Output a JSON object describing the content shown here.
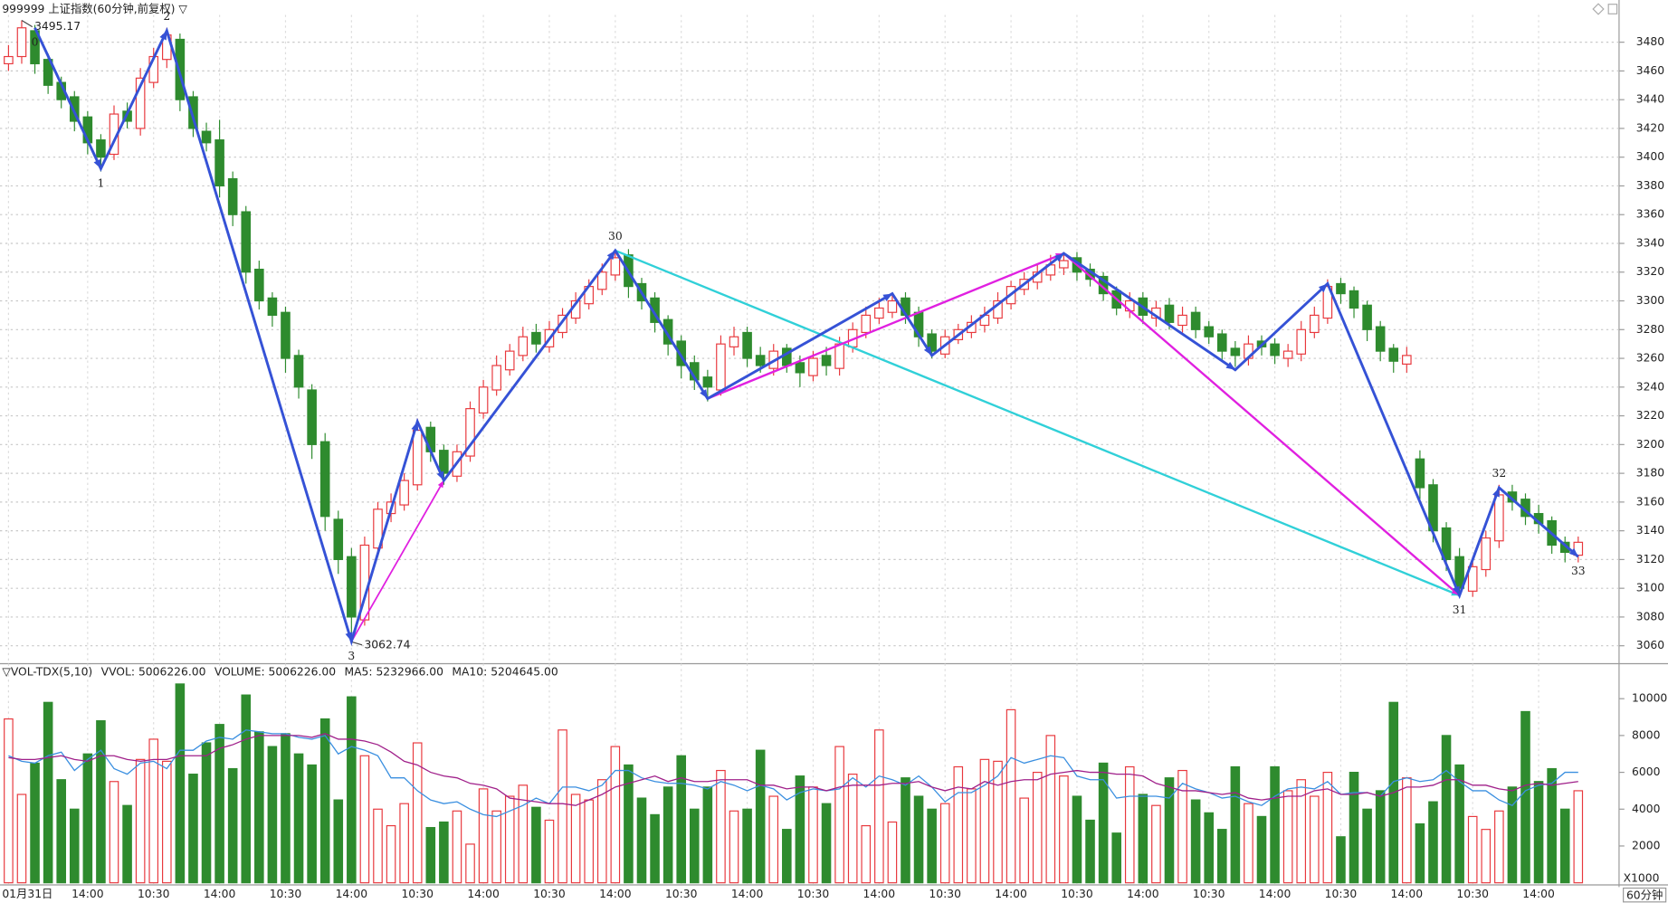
{
  "chart_data": [
    {
      "type": "candlestick",
      "title": "999999 上证指数(60分钟,前复权) ▽",
      "categories": [
        "01月31日",
        null,
        null,
        null,
        null,
        null,
        "14:00",
        null,
        null,
        null,
        null,
        "10:30",
        null,
        null,
        null,
        null,
        "14:00",
        null,
        null,
        null,
        null,
        "10:30",
        null,
        null,
        null,
        null,
        "14:00",
        null,
        null,
        null,
        null,
        "10:30",
        null,
        null,
        null,
        null,
        "14:00",
        null,
        null,
        null,
        null,
        "10:30",
        null,
        null,
        null,
        null,
        "14:00",
        null,
        null,
        null,
        null,
        "10:30",
        null,
        null,
        null,
        null,
        "14:00",
        null,
        null,
        null,
        null,
        "10:30",
        null,
        null,
        null,
        null,
        "14:00",
        null,
        null,
        null,
        null,
        "10:30",
        null,
        null,
        null,
        null,
        "14:00",
        null,
        null,
        null,
        null,
        "10:30",
        null,
        null,
        null,
        null,
        "14:00",
        null,
        null,
        null,
        null,
        "10:30",
        null,
        null,
        null,
        null,
        "14:00",
        null,
        null,
        null,
        null,
        "10:30",
        null,
        null,
        null,
        null,
        "14:00",
        null,
        null,
        null,
        null,
        "10:30",
        null,
        null,
        null,
        null,
        "14:00",
        null,
        null,
        null
      ],
      "open": [
        3465,
        3470,
        3488,
        3468,
        3452,
        3442,
        3428,
        3412,
        3402,
        3432,
        3420,
        3452,
        3468,
        3482,
        3442,
        3418,
        3412,
        3385,
        3362,
        3322,
        3302,
        3292,
        3262,
        3238,
        3202,
        3148,
        3122,
        3078,
        3128,
        3152,
        3158,
        3172,
        3212,
        3196,
        3178,
        3192,
        3222,
        3238,
        3252,
        3262,
        3278,
        3268,
        3278,
        3288,
        3298,
        3308,
        3318,
        3332,
        3312,
        3302,
        3287,
        3272,
        3257,
        3247,
        3238,
        3268,
        3278,
        3262,
        3253,
        3267,
        3257,
        3248,
        3262,
        3253,
        3268,
        3278,
        3288,
        3292,
        3302,
        3292,
        3277,
        3263,
        3273,
        3278,
        3283,
        3288,
        3298,
        3308,
        3313,
        3318,
        3323,
        3330,
        3322,
        3317,
        3307,
        3293,
        3302,
        3288,
        3297,
        3283,
        3292,
        3282,
        3277,
        3267,
        3260,
        3272,
        3270,
        3260,
        3263,
        3278,
        3288,
        3312,
        3307,
        3297,
        3282,
        3267,
        3256,
        3190,
        3172,
        3142,
        3122,
        3098,
        3113,
        3133,
        3167,
        3162,
        3152,
        3147,
        3132,
        3123
      ],
      "high": [
        3478,
        3495.17,
        3492,
        3472,
        3456,
        3446,
        3432,
        3416,
        3436,
        3438,
        3462,
        3476,
        3490,
        3486,
        3446,
        3424,
        3426,
        3390,
        3366,
        3328,
        3306,
        3296,
        3266,
        3242,
        3208,
        3154,
        3128,
        3136,
        3160,
        3166,
        3180,
        3218,
        3216,
        3200,
        3200,
        3230,
        3245,
        3262,
        3270,
        3282,
        3284,
        3286,
        3295,
        3306,
        3315,
        3326,
        3336,
        3336,
        3316,
        3306,
        3290,
        3276,
        3262,
        3252,
        3276,
        3282,
        3282,
        3268,
        3270,
        3270,
        3262,
        3265,
        3268,
        3275,
        3285,
        3296,
        3302,
        3306,
        3306,
        3296,
        3280,
        3280,
        3284,
        3290,
        3296,
        3306,
        3314,
        3320,
        3326,
        3332,
        3334,
        3334,
        3326,
        3320,
        3310,
        3306,
        3306,
        3300,
        3302,
        3296,
        3296,
        3286,
        3280,
        3272,
        3276,
        3276,
        3274,
        3270,
        3286,
        3296,
        3315,
        3316,
        3310,
        3300,
        3286,
        3270,
        3268,
        3196,
        3176,
        3146,
        3128,
        3122,
        3140,
        3172,
        3172,
        3166,
        3158,
        3150,
        3136,
        3136
      ],
      "low": [
        3460,
        3465,
        3458,
        3444,
        3434,
        3418,
        3402,
        3390,
        3398,
        3420,
        3415,
        3448,
        3462,
        3432,
        3414,
        3404,
        3372,
        3352,
        3312,
        3294,
        3282,
        3250,
        3232,
        3190,
        3140,
        3110,
        3062.74,
        3074,
        3122,
        3146,
        3154,
        3168,
        3188,
        3172,
        3174,
        3188,
        3218,
        3234,
        3248,
        3258,
        3264,
        3264,
        3274,
        3284,
        3294,
        3304,
        3314,
        3302,
        3294,
        3278,
        3262,
        3246,
        3238,
        3230,
        3234,
        3262,
        3254,
        3250,
        3248,
        3250,
        3240,
        3244,
        3248,
        3248,
        3264,
        3274,
        3284,
        3288,
        3284,
        3268,
        3260,
        3260,
        3270,
        3274,
        3278,
        3284,
        3294,
        3304,
        3308,
        3314,
        3318,
        3314,
        3310,
        3300,
        3290,
        3288,
        3284,
        3282,
        3280,
        3278,
        3274,
        3270,
        3258,
        3254,
        3255,
        3262,
        3256,
        3254,
        3258,
        3274,
        3284,
        3298,
        3288,
        3272,
        3258,
        3250,
        3250,
        3162,
        3132,
        3112,
        3095,
        3094,
        3108,
        3128,
        3154,
        3144,
        3138,
        3124,
        3118,
        3118
      ],
      "close": [
        3470,
        3490,
        3465,
        3450,
        3440,
        3425,
        3410,
        3400,
        3430,
        3425,
        3455,
        3470,
        3485,
        3440,
        3420,
        3410,
        3380,
        3360,
        3320,
        3300,
        3290,
        3260,
        3240,
        3200,
        3150,
        3120,
        3080,
        3130,
        3155,
        3160,
        3175,
        3210,
        3195,
        3180,
        3195,
        3225,
        3240,
        3255,
        3265,
        3275,
        3270,
        3280,
        3290,
        3300,
        3310,
        3320,
        3330,
        3310,
        3300,
        3285,
        3270,
        3255,
        3245,
        3240,
        3270,
        3275,
        3260,
        3255,
        3265,
        3255,
        3250,
        3260,
        3255,
        3270,
        3280,
        3290,
        3295,
        3300,
        3290,
        3275,
        3265,
        3275,
        3280,
        3285,
        3290,
        3300,
        3310,
        3315,
        3320,
        3325,
        3328,
        3320,
        3315,
        3305,
        3295,
        3300,
        3290,
        3295,
        3285,
        3290,
        3280,
        3275,
        3265,
        3262,
        3270,
        3268,
        3262,
        3265,
        3280,
        3290,
        3310,
        3305,
        3295,
        3280,
        3265,
        3258,
        3262,
        3170,
        3140,
        3120,
        3100,
        3115,
        3135,
        3165,
        3160,
        3150,
        3145,
        3130,
        3125,
        3132
      ],
      "up_color": "#e8383d",
      "down_color": "#2e8b2e",
      "ylim": [
        3049,
        3499
      ],
      "yticks": [
        3060,
        3080,
        3100,
        3120,
        3140,
        3160,
        3180,
        3200,
        3220,
        3240,
        3260,
        3280,
        3300,
        3320,
        3340,
        3360,
        3380,
        3400,
        3420,
        3440,
        3460,
        3480
      ],
      "grid": true,
      "annotations": [
        {
          "color": "#30d0d8",
          "width": 2,
          "x": [
            46,
            110
          ],
          "y": [
            3335,
            3095
          ]
        },
        {
          "color": "#e020e0",
          "width": 1.5,
          "x": [
            26,
            33,
            46
          ],
          "y": [
            3063,
            3175,
            3335
          ]
        },
        {
          "color": "#e020e0",
          "width": 2,
          "x": [
            53,
            80,
            110
          ],
          "y": [
            3232,
            3333,
            3095
          ]
        },
        {
          "color": "#3552d6",
          "width": 2.5,
          "x": [
            2,
            7,
            12,
            26,
            31,
            33,
            46,
            53,
            67,
            70,
            80,
            93,
            100,
            110,
            113,
            119
          ],
          "y": [
            3490,
            3392,
            3488,
            3063,
            3216,
            3175,
            3335,
            3232,
            3305,
            3262,
            3333,
            3252,
            3312,
            3095,
            3170,
            3122
          ],
          "labels": [
            "0",
            "1",
            "2",
            "3",
            null,
            null,
            "30",
            null,
            null,
            null,
            null,
            null,
            null,
            "31",
            "32",
            "33"
          ]
        }
      ]
    },
    {
      "type": "bar",
      "header": [
        {
          "text": "▽VOL-TDX(5,10)",
          "color": "#222222"
        },
        {
          "text": "VVOL: 5006226.00",
          "color": "#222222"
        }
      ],
      "series": [
        {
          "name": "VOLUME: 5006226.00",
          "color": "#1f6fd0",
          "style": "bar",
          "values": [
            8900,
            4800,
            6500,
            9800,
            5600,
            4000,
            7000,
            8800,
            5500,
            4200,
            6700,
            7800,
            6600,
            10800,
            5900,
            7600,
            8600,
            6200,
            10200,
            8200,
            7400,
            8100,
            7000,
            6400,
            8900,
            4500,
            10100,
            6900,
            4000,
            3100,
            4300,
            7600,
            3000,
            3300,
            3900,
            2100,
            5100,
            3900,
            4700,
            5300,
            4100,
            3400,
            8300,
            4800,
            4500,
            5600,
            7400,
            6400,
            4600,
            3700,
            5200,
            6900,
            4000,
            5200,
            6100,
            3900,
            4000,
            7200,
            4700,
            2900,
            5800,
            5200,
            4300,
            7400,
            5900,
            3100,
            8300,
            3300,
            5700,
            4700,
            4000,
            4300,
            6300,
            5100,
            6700,
            6600,
            9400,
            4600,
            6000,
            8000,
            5800,
            4700,
            3400,
            6500,
            2700,
            6300,
            4800,
            4200,
            5700,
            6100,
            4500,
            3800,
            2900,
            6300,
            4300,
            3600,
            6300,
            5000,
            5600,
            4700,
            6000,
            2500,
            6000,
            4000,
            5000,
            9800,
            5700,
            3200,
            4400,
            8000,
            6400,
            3600,
            2900,
            3900,
            5200,
            9300,
            5500,
            6200,
            4000,
            5000
          ]
        },
        {
          "name": "MA5: 5232966.00",
          "color": "#3a8fe0",
          "style": "line",
          "values": [
            6900,
            6600,
            6500,
            6900,
            7100,
            6100,
            6700,
            7200,
            6200,
            5900,
            6500,
            6600,
            6200,
            7200,
            7200,
            7700,
            7900,
            7800,
            8300,
            8200,
            8100,
            8100,
            7900,
            7800,
            8000,
            7000,
            7400,
            7200,
            6900,
            5700,
            5700,
            5000,
            4500,
            4300,
            4400,
            4000,
            3700,
            3600,
            3900,
            4200,
            4600,
            4300,
            5200,
            5200,
            5000,
            5300,
            6100,
            6100,
            5700,
            5500,
            5400,
            5400,
            5300,
            5100,
            5500,
            5300,
            5000,
            5300,
            5100,
            4500,
            4900,
            5100,
            5000,
            5100,
            5700,
            5200,
            5800,
            5600,
            5300,
            5800,
            5200,
            4400,
            4900,
            4900,
            5300,
            5800,
            6800,
            6500,
            6700,
            6900,
            6800,
            5800,
            5600,
            5600,
            4600,
            4700,
            4700,
            4700,
            4600,
            5400,
            5100,
            4900,
            4600,
            4700,
            4400,
            4200,
            4700,
            5100,
            5200,
            5100,
            5500,
            4800,
            4900,
            4900,
            4700,
            5500,
            5700,
            5500,
            5600,
            6100,
            5500,
            5000,
            5000,
            4500,
            4200,
            5000,
            5300,
            5400,
            6000,
            6000
          ]
        },
        {
          "name": "MA10: 5204645.00",
          "color": "#a0208a",
          "style": "line",
          "values": [
            6800,
            6700,
            6700,
            6800,
            6900,
            6700,
            6600,
            6900,
            6900,
            6700,
            6600,
            6700,
            6700,
            6900,
            6900,
            6900,
            7300,
            7500,
            7800,
            8000,
            8000,
            8000,
            8000,
            7900,
            8100,
            7800,
            7800,
            7700,
            7500,
            7100,
            6600,
            6400,
            6000,
            5800,
            5700,
            5400,
            5300,
            5100,
            4600,
            4500,
            4400,
            4300,
            4300,
            4200,
            4500,
            4800,
            5200,
            5400,
            5600,
            5800,
            5500,
            5700,
            5500,
            5500,
            5600,
            5600,
            5600,
            5300,
            5300,
            5100,
            5200,
            5200,
            5000,
            5200,
            5300,
            5300,
            5300,
            5400,
            5400,
            5500,
            5200,
            5000,
            5200,
            5100,
            5500,
            5300,
            5500,
            5600,
            5600,
            5900,
            6000,
            6100,
            6000,
            6000,
            5900,
            5900,
            5800,
            5400,
            5200,
            5000,
            5000,
            4900,
            4800,
            4900,
            4600,
            4500,
            4600,
            4700,
            4700,
            5000,
            5100,
            4800,
            4800,
            4900,
            4700,
            4900,
            5200,
            5200,
            5300,
            5600,
            5600,
            5300,
            5300,
            5100,
            5000,
            5300,
            5400,
            5300,
            5400,
            5500
          ]
        }
      ],
      "ylim": [
        0,
        11670
      ],
      "yticks": [
        2000,
        4000,
        6000,
        8000,
        10000
      ],
      "unit_label": "X1000",
      "period_label": "60分钟"
    }
  ]
}
